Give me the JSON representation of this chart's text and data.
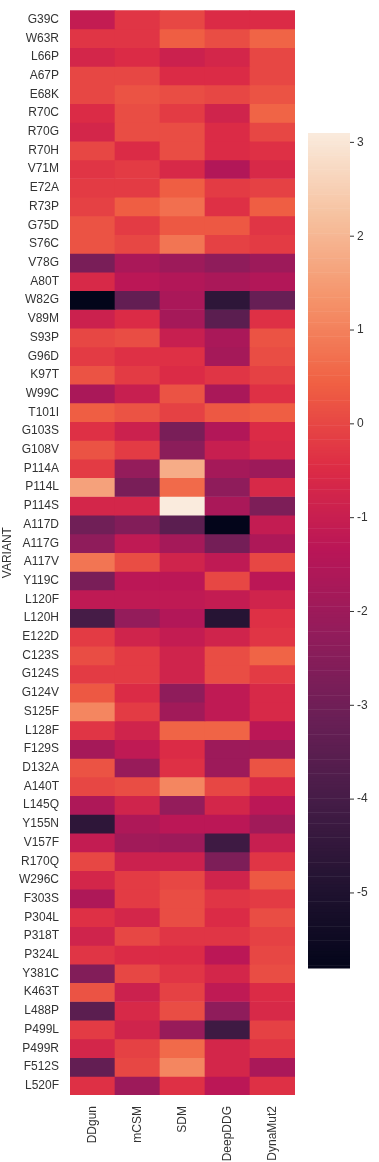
{
  "chart_data": {
    "type": "heatmap",
    "ylabel": "VARIANT",
    "categories": [
      "DDgun",
      "mCSM",
      "SDM",
      "DeepDDG",
      "DynaMut2"
    ],
    "y_categories": [
      "G39C",
      "W63R",
      "L66P",
      "A67P",
      "E68K",
      "R70C",
      "R70G",
      "R70H",
      "V71M",
      "E72A",
      "R73P",
      "G75D",
      "S76C",
      "V78G",
      "A80T",
      "W82G",
      "V89M",
      "S93P",
      "G96D",
      "K97T",
      "W99C",
      "T101I",
      "G103S",
      "G108V",
      "P114A",
      "P114L",
      "P114S",
      "A117D",
      "A117G",
      "A117V",
      "Y119C",
      "L120F",
      "L120H",
      "E122D",
      "C123S",
      "G124S",
      "G124V",
      "S125F",
      "L128F",
      "F129S",
      "D132A",
      "A140T",
      "L145Q",
      "Y155N",
      "V157F",
      "R170Q",
      "W296C",
      "F303S",
      "P304L",
      "P318T",
      "P324L",
      "Y381C",
      "K463T",
      "L488P",
      "P499L",
      "P499R",
      "F512S",
      "L520F"
    ],
    "cells": [
      [
        -1.1,
        -0.3,
        0.0,
        -0.5,
        -0.5
      ],
      [
        -0.3,
        -0.3,
        0.4,
        0.1,
        0.5
      ],
      [
        -0.7,
        -0.5,
        -0.9,
        -0.7,
        0.0
      ],
      [
        0.0,
        0.0,
        -0.5,
        -0.5,
        0.0
      ],
      [
        0.0,
        0.2,
        0.1,
        0.0,
        0.2
      ],
      [
        -0.5,
        0.1,
        -0.2,
        -0.8,
        0.5
      ],
      [
        -0.7,
        0.1,
        0.1,
        -0.5,
        0.0
      ],
      [
        0.0,
        -0.5,
        0.1,
        -0.5,
        -0.4
      ],
      [
        -0.3,
        -0.2,
        -0.6,
        -1.5,
        -0.6
      ],
      [
        -0.2,
        -0.2,
        0.4,
        -0.2,
        -0.1
      ],
      [
        -0.1,
        0.4,
        0.7,
        -0.4,
        0.4
      ],
      [
        0.2,
        -0.2,
        0.3,
        0.3,
        -0.3
      ],
      [
        0.2,
        0.0,
        0.8,
        -0.1,
        -0.2
      ],
      [
        -2.8,
        -1.7,
        -2.0,
        -2.3,
        -2.0
      ],
      [
        -0.6,
        -1.3,
        -1.5,
        -1.7,
        -1.5
      ],
      [
        -5.8,
        -3.3,
        -1.7,
        -4.6,
        -3.2
      ],
      [
        -0.9,
        -0.5,
        -1.8,
        -3.5,
        -0.4
      ],
      [
        0.0,
        0.1,
        -1.0,
        -1.7,
        0.2
      ],
      [
        -0.2,
        -0.4,
        -0.4,
        -1.8,
        0.1
      ],
      [
        0.2,
        -0.2,
        -0.5,
        -0.3,
        -0.1
      ],
      [
        -1.7,
        -1.0,
        0.2,
        -1.7,
        -0.4
      ],
      [
        0.4,
        0.2,
        -0.1,
        0.3,
        0.4
      ],
      [
        -0.4,
        -0.9,
        -2.8,
        -1.5,
        -0.5
      ],
      [
        0.2,
        -0.2,
        -2.4,
        -1.0,
        -0.6
      ],
      [
        -0.2,
        -2.2,
        1.8,
        -1.8,
        -2.0
      ],
      [
        1.6,
        -2.8,
        0.6,
        -2.3,
        -0.6
      ],
      [
        -0.7,
        -0.7,
        3.1,
        -1.7,
        -2.7
      ],
      [
        -3.0,
        -2.6,
        -3.5,
        -5.8,
        -1.1
      ],
      [
        -2.3,
        -1.2,
        -1.8,
        -2.9,
        -1.6
      ],
      [
        0.8,
        0.1,
        -0.8,
        -1.2,
        0.0
      ],
      [
        -2.8,
        -1.3,
        -1.3,
        0.0,
        -1.3
      ],
      [
        -1.2,
        -1.2,
        -1.2,
        -1.1,
        -0.8
      ],
      [
        -4.0,
        -2.2,
        -1.5,
        -4.8,
        -0.4
      ],
      [
        -0.2,
        -0.8,
        -1.1,
        -0.8,
        -0.3
      ],
      [
        0.1,
        -0.2,
        -0.8,
        0.1,
        0.5
      ],
      [
        -0.2,
        -0.2,
        -0.8,
        0.1,
        -0.2
      ],
      [
        0.3,
        -0.5,
        -2.3,
        -1.2,
        -0.6
      ],
      [
        1.1,
        -0.2,
        -1.9,
        -1.2,
        -0.6
      ],
      [
        -0.3,
        -0.8,
        0.5,
        0.5,
        -1.3
      ],
      [
        -1.8,
        -1.2,
        -0.5,
        -2.0,
        -1.9
      ],
      [
        0.2,
        -2.1,
        -0.4,
        -2.0,
        0.2
      ],
      [
        0.0,
        0.1,
        1.1,
        0.0,
        -0.6
      ],
      [
        -1.6,
        -0.8,
        -2.2,
        -0.7,
        -1.3
      ],
      [
        -4.6,
        -1.6,
        -1.3,
        -1.3,
        -1.9
      ],
      [
        -1.1,
        -1.9,
        -2.0,
        -4.2,
        -1.0
      ],
      [
        0.0,
        -0.9,
        -0.9,
        -2.7,
        -0.3
      ],
      [
        -0.7,
        -0.2,
        0.0,
        -0.8,
        0.3
      ],
      [
        -1.6,
        -0.2,
        0.1,
        -0.3,
        -0.2
      ],
      [
        -0.4,
        -0.7,
        0.1,
        -0.5,
        0.1
      ],
      [
        -0.8,
        0.0,
        -0.3,
        -0.3,
        -0.1
      ],
      [
        -0.3,
        -0.5,
        -0.5,
        -1.3,
        0.0
      ],
      [
        -2.6,
        0.0,
        -0.3,
        -0.7,
        0.1
      ],
      [
        0.2,
        -0.9,
        -0.1,
        -1.2,
        -0.5
      ],
      [
        -3.5,
        -0.6,
        0.1,
        -2.3,
        -0.6
      ],
      [
        -0.2,
        -0.8,
        -2.1,
        -4.2,
        -0.1
      ],
      [
        -0.7,
        -0.1,
        0.6,
        -0.7,
        -0.3
      ],
      [
        -3.3,
        0.0,
        1.1,
        -0.7,
        -1.7
      ],
      [
        -0.4,
        -2.0,
        -0.4,
        -1.3,
        -0.4
      ]
    ],
    "clim": [
      -5.8,
      3.1
    ],
    "cticks": [
      -5,
      -4,
      -3,
      -2,
      -1,
      0,
      1,
      2,
      3
    ]
  }
}
